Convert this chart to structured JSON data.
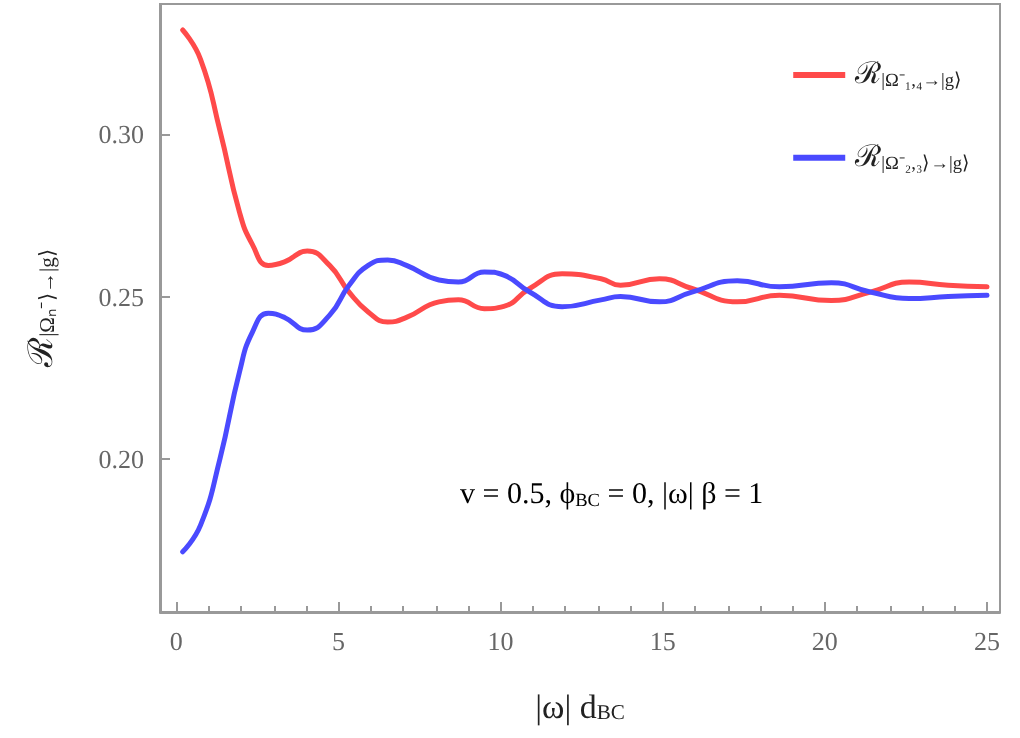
{
  "chart_data": {
    "type": "line",
    "xlabel": "|ω| d$_{BC}$",
    "ylabel": "ℛ$_{|Ωₙ⁻⟩→|g⟩}$",
    "annotations": [
      "v = 0.5, ϕ$_{BC}$ = 0, |ω| β = 1"
    ],
    "x": [
      0.2,
      0.75,
      1.35,
      1.95,
      2.35,
      2.84,
      3.34,
      4.04,
      4.73,
      5.33,
      5.92,
      6.52,
      7.1,
      8.1,
      8.7,
      9.5,
      10.1,
      10.9,
      11.9,
      13.1,
      13.7,
      14.9,
      15.9,
      17.3,
      18.6,
      20.2,
      21.4,
      22.6,
      23.8,
      25
    ],
    "series": [
      {
        "name": "ℛ$_{|Ω⁻₁,₄→|g⟩}$",
        "color": "#ff4a4a",
        "values": [
          0.332,
          0.323,
          0.301,
          0.276,
          0.266,
          0.2596,
          0.2607,
          0.264,
          0.2596,
          0.2514,
          0.2453,
          0.2422,
          0.2436,
          0.2484,
          0.249,
          0.2463,
          0.247,
          0.2525,
          0.257,
          0.2555,
          0.2535,
          0.2555,
          0.2525,
          0.2484,
          0.2504,
          0.2488,
          0.2514,
          0.2545,
          0.2535,
          0.253
        ]
      },
      {
        "name": "ℛ$_{|Ω⁻₂,₃⟩→|g⟩}$",
        "color": "#4a4aff",
        "values": [
          0.1715,
          0.1797,
          0.2002,
          0.2268,
          0.2391,
          0.2449,
          0.2436,
          0.2397,
          0.2443,
          0.2535,
          0.2596,
          0.2613,
          0.2596,
          0.2551,
          0.2545,
          0.2576,
          0.2566,
          0.2514,
          0.2469,
          0.249,
          0.25,
          0.2484,
          0.2514,
          0.2549,
          0.253,
          0.2543,
          0.2514,
          0.2494,
          0.25,
          0.2504
        ]
      }
    ],
    "xlim": [
      -0.5,
      25.4
    ],
    "xticks": [
      0,
      5,
      10,
      15,
      20,
      25
    ],
    "ylim": [
      0.153,
      0.34
    ],
    "yticks": [
      {
        "value": 0.2,
        "label": "0.20"
      },
      {
        "value": 0.25,
        "label": "0.25"
      },
      {
        "value": 0.3,
        "label": "0.30"
      }
    ],
    "legend": "top right",
    "grid": false,
    "marker": "none",
    "line_style": "solid"
  }
}
